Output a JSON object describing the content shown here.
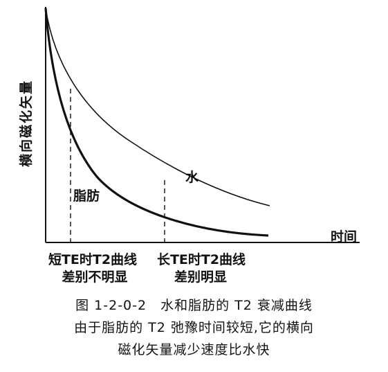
{
  "diagram": {
    "y_axis_label": "横向磁化矢量",
    "x_axis_label": "时间",
    "curve_water_label": "水",
    "curve_fat_label": "脂肪",
    "short_te_line1": "短TE时T2曲线",
    "short_te_line2": "差别不明显",
    "long_te_line1": "长TE时T2曲线",
    "long_te_line2": "差别明显"
  },
  "caption": {
    "line1": "图 1-2-0-2　水和脂肪的 T2 衰减曲线",
    "line2": "由于脂肪的 T2 弛豫时间较短,它的横向",
    "line3": "磁化矢量减少速度比水快"
  }
}
